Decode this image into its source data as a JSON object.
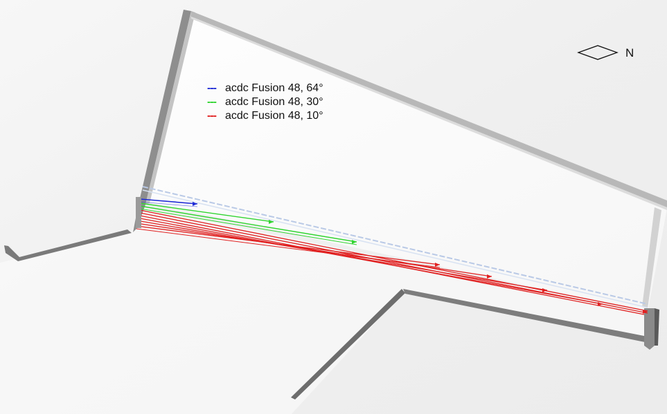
{
  "legend": {
    "items": [
      {
        "label": "acdc Fusion 48, 64°",
        "swatch": "---",
        "color": "#1f2bd6"
      },
      {
        "label": "acdc Fusion 48, 30°",
        "swatch": "---",
        "color": "#2fd42f"
      },
      {
        "label": "acdc Fusion 48, 10°",
        "swatch": "---",
        "color": "#e02020"
      }
    ]
  },
  "compass": {
    "label": "N",
    "icon": "north-arrow-diamond-icon"
  },
  "colors": {
    "background": "#ffffff",
    "floor": "#f2f2f2",
    "room": "#fcfcfc",
    "wall": "#8f8f8f",
    "wall_dark": "#6f6f6f",
    "dashed_edge": "#b9c9e6",
    "blue": "#1f2bd6",
    "green": "#2fd42f",
    "red": "#e02020"
  }
}
